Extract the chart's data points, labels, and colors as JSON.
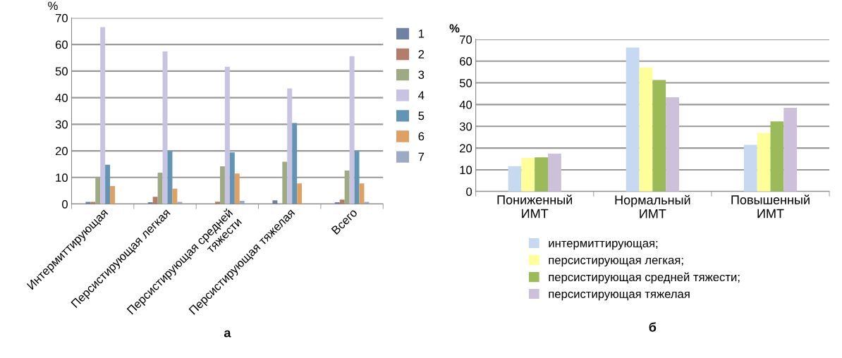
{
  "chart_data": [
    {
      "type": "bar",
      "xlabel": "а",
      "ylabel": "%",
      "categories": [
        "Интермиттирующая",
        "Персистирующая легкая",
        "Персистирующая средней\nтяжести",
        "Персистирующая тяжелая",
        "Всего"
      ],
      "ylim": [
        0,
        70
      ],
      "yticks": [
        0,
        10,
        20,
        30,
        40,
        50,
        60,
        70
      ],
      "grid": "y",
      "legend": "right",
      "series": [
        {
          "name": "1",
          "color": "#6f82a3",
          "values": [
            0.8,
            0.7,
            0,
            1.4,
            0.7
          ]
        },
        {
          "name": "2",
          "color": "#b47c6a",
          "values": [
            0.8,
            2.7,
            0.9,
            0,
            1.7
          ]
        },
        {
          "name": "3",
          "color": "#9eaa82",
          "values": [
            10,
            11.8,
            14.2,
            15.9,
            12.6
          ]
        },
        {
          "name": "4",
          "color": "#c8c3e3",
          "values": [
            66.5,
            57.4,
            51.6,
            43.5,
            55.6
          ]
        },
        {
          "name": "5",
          "color": "#6294b4",
          "values": [
            14.8,
            19.9,
            19.4,
            30.5,
            19.9
          ]
        },
        {
          "name": "6",
          "color": "#dea063",
          "values": [
            6.8,
            5.8,
            11.5,
            7.8,
            7.8
          ]
        },
        {
          "name": "7",
          "color": "#9daac5",
          "values": [
            0,
            0.8,
            1.2,
            0,
            0.8
          ]
        }
      ]
    },
    {
      "type": "bar",
      "xlabel": "б",
      "ylabel": "%",
      "categories": [
        "Пониженный\nИМТ",
        "Нормальный\nИМТ",
        "Повышенный\nИМТ"
      ],
      "ylim": [
        0,
        70
      ],
      "yticks": [
        0,
        10,
        20,
        30,
        40,
        50,
        60,
        70
      ],
      "grid": "y",
      "legend": "bottom",
      "series": [
        {
          "name": "интермиттирующая;",
          "color": "#c6d9f1",
          "values": [
            11.7,
            66.2,
            21.5
          ]
        },
        {
          "name": "персистирующая легкая;",
          "color": "#ffff99",
          "values": [
            15.5,
            57.1,
            26.9
          ]
        },
        {
          "name": "персистирующая средней тяжести;",
          "color": "#9bbb59",
          "values": [
            15.7,
            51.3,
            32.3
          ]
        },
        {
          "name": "персистирующая тяжелая",
          "color": "#ccc0da",
          "values": [
            17.4,
            43.4,
            38.5
          ]
        }
      ]
    }
  ]
}
